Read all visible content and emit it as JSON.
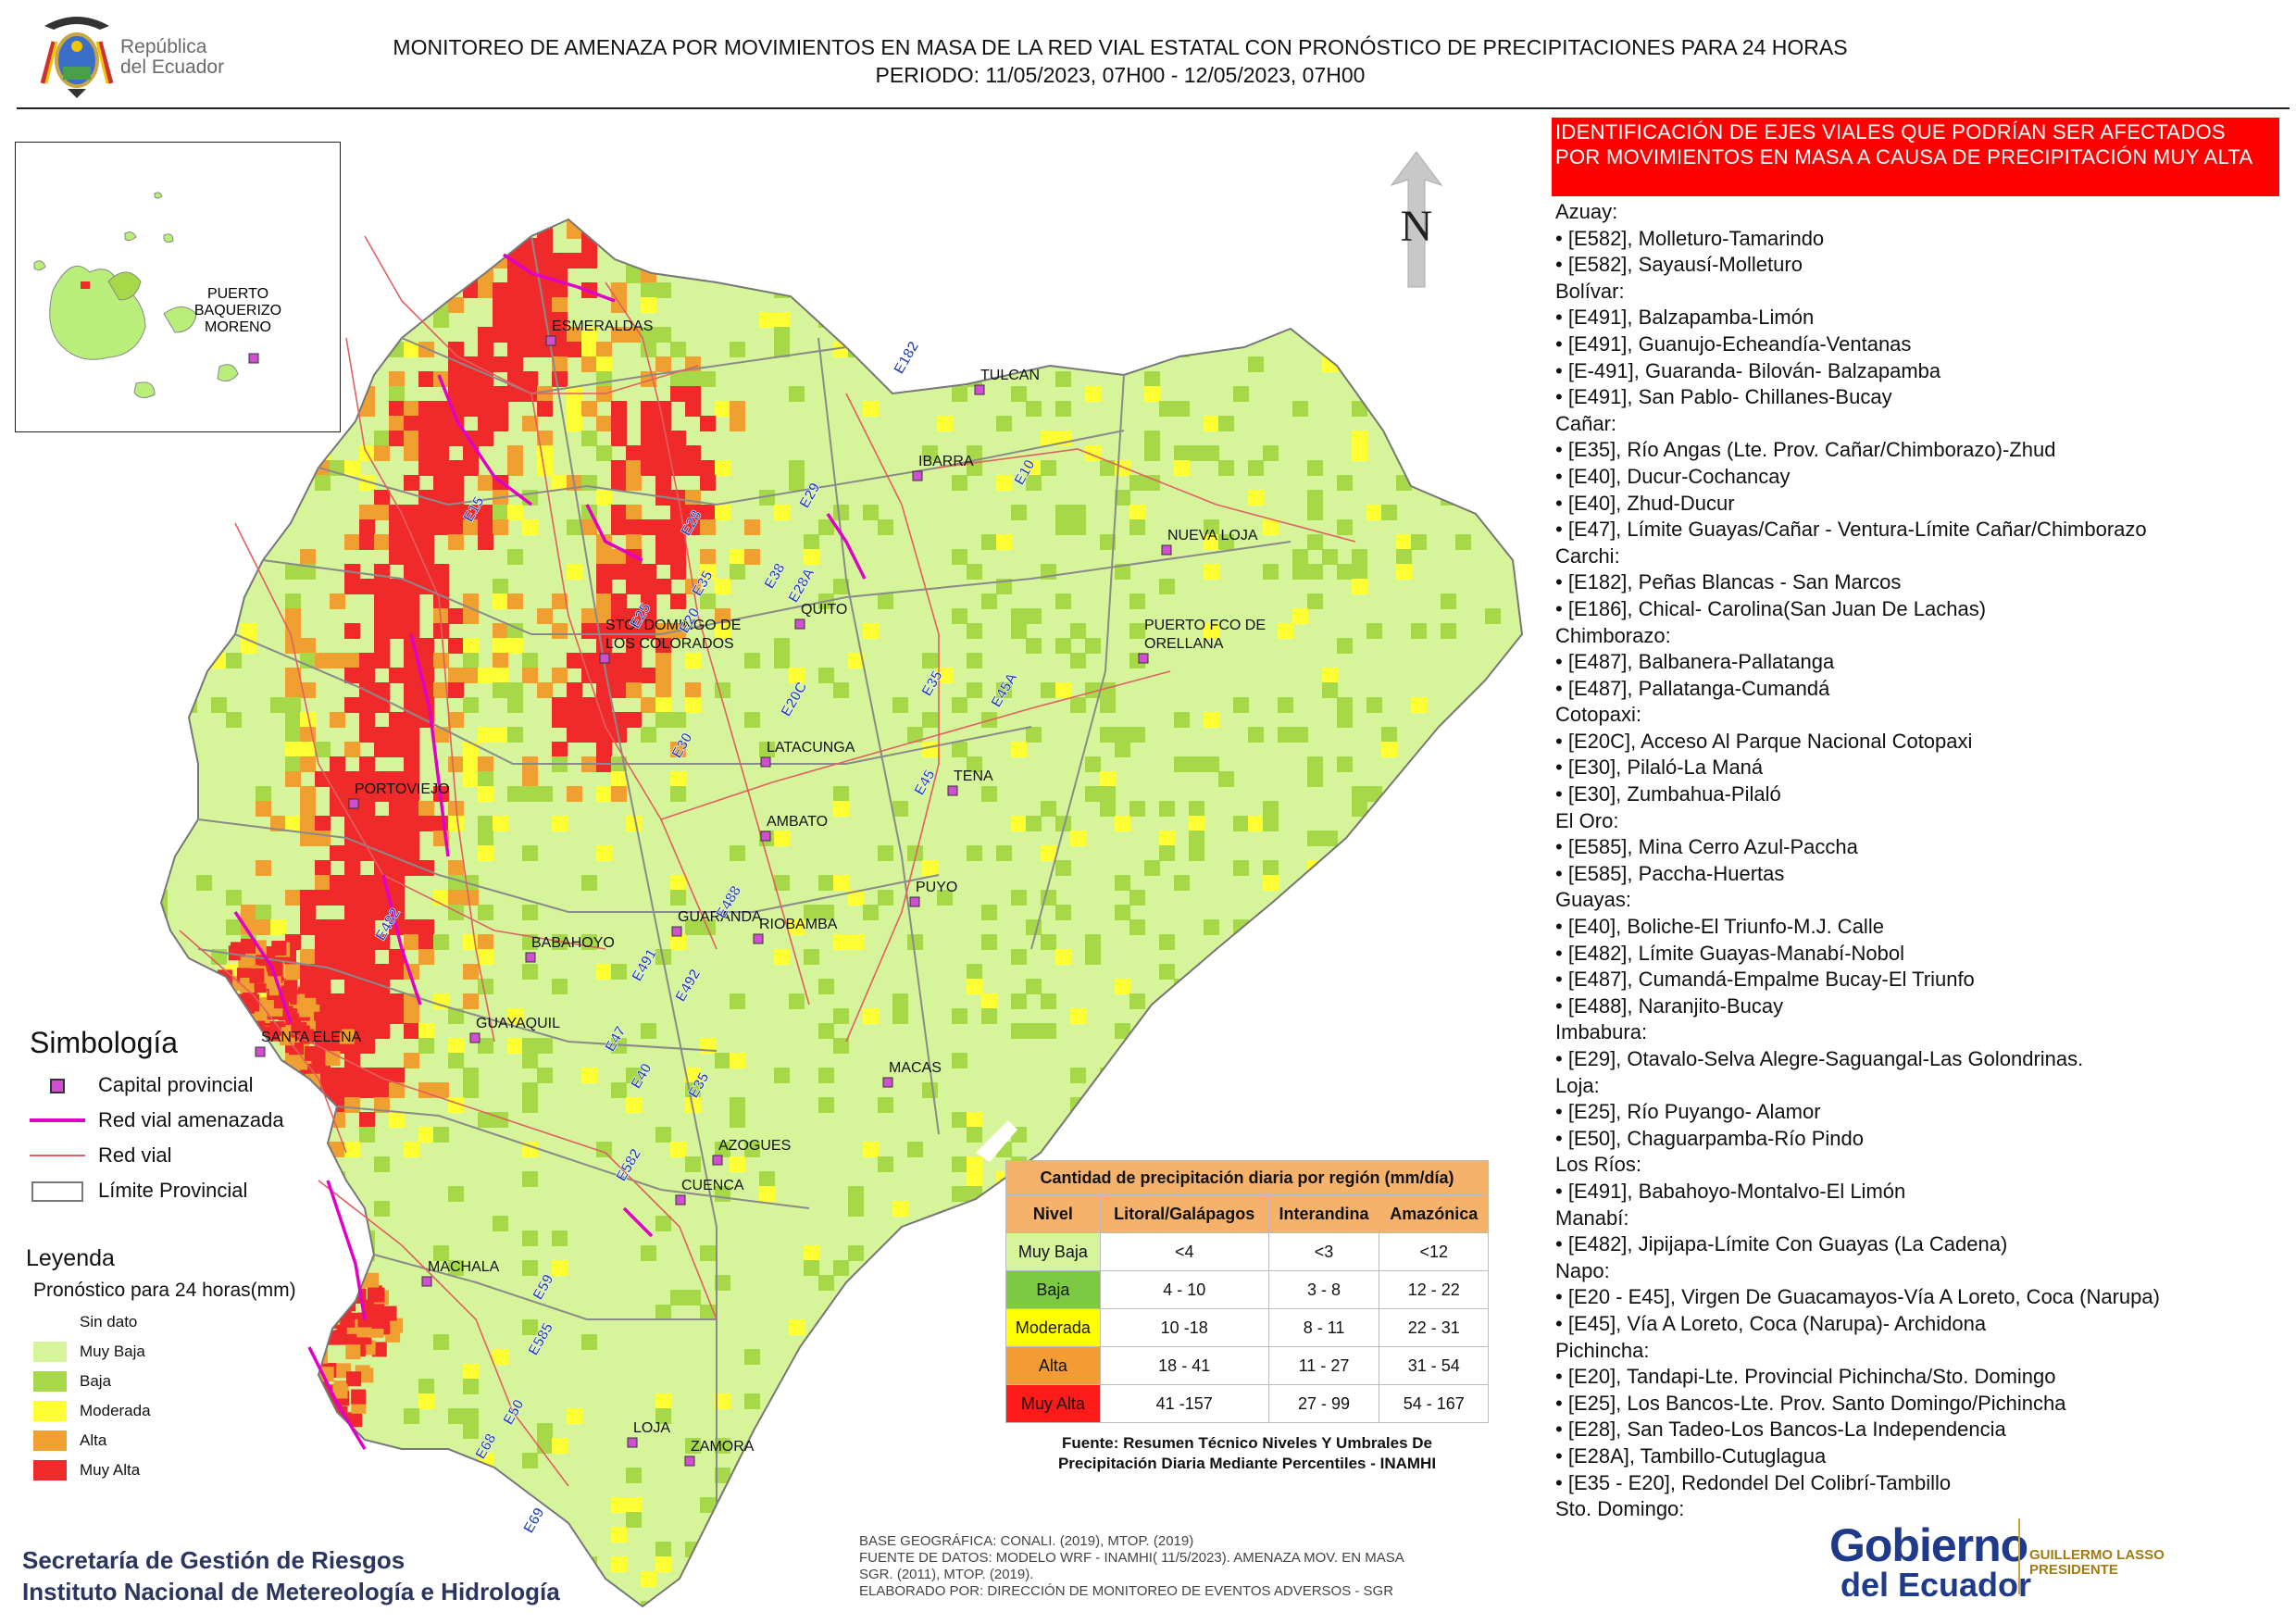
{
  "header": {
    "republica_line1": "República",
    "republica_line2": "del Ecuador",
    "title_line1": "MONITOREO DE AMENAZA POR MOVIMIENTOS EN MASA DE LA RED VIAL  ESTATAL  CON PRONÓSTICO  DE  PRECIPITACIONES PARA 24 HORAS",
    "title_line2": "PERIODO: 11/05/2023, 07H00 - 12/05/2023, 07H00"
  },
  "map": {
    "north_label": "N",
    "inset_city": [
      "PUERTO",
      "BAQUERIZO",
      "MORENO"
    ],
    "cities": [
      {
        "name": "ESMERALDAS"
      },
      {
        "name": "TULCAN"
      },
      {
        "name": "IBARRA"
      },
      {
        "name": "NUEVA LOJA"
      },
      {
        "name": "QUITO"
      },
      {
        "name": "STO. DOMINGO DE"
      },
      {
        "name": "LOS COLORADOS"
      },
      {
        "name": "PUERTO FCO DE"
      },
      {
        "name": "ORELLANA"
      },
      {
        "name": "LATACUNGA"
      },
      {
        "name": "TENA"
      },
      {
        "name": "PORTOVIEJO"
      },
      {
        "name": "AMBATO"
      },
      {
        "name": "PUYO"
      },
      {
        "name": "GUARANDA"
      },
      {
        "name": "RIOBAMBA"
      },
      {
        "name": "BABAHOYO"
      },
      {
        "name": "SANTA ELENA"
      },
      {
        "name": "GUAYAQUIL"
      },
      {
        "name": "MACAS"
      },
      {
        "name": "AZOGUES"
      },
      {
        "name": "CUENCA"
      },
      {
        "name": "MACHALA"
      },
      {
        "name": "LOJA"
      },
      {
        "name": "ZAMORA"
      }
    ],
    "roads": [
      "E182",
      "E10",
      "E15",
      "E28",
      "E29",
      "E35",
      "E20",
      "E25",
      "E30",
      "E20C",
      "E45",
      "E45A",
      "E40",
      "E47",
      "E488",
      "E491",
      "E492",
      "E482",
      "E35",
      "E582",
      "E59",
      "E585",
      "E50",
      "E68",
      "E69",
      "E38",
      "E28A",
      "E35"
    ],
    "colors": {
      "sin_dato": "#ffffff",
      "muy_baja": "#d6f59a",
      "baja": "#a6d84a",
      "moderada": "#ffff33",
      "alta": "#f0a030",
      "muy_alta": "#f02a2a",
      "road_threat": "#e000c8",
      "road": "#e06060",
      "boundary": "#8a8a8a"
    }
  },
  "panel": {
    "heading": "IDENTIFICACIÓN DE EJES VIALES QUE PODRÍAN SER AFECTADOS POR MOVIMIENTOS EN MASA A CAUSA DE PRECIPITACIÓN MUY ALTA",
    "provinces": [
      {
        "name": "Azuay:",
        "roads": [
          "• [E582], Molleturo-Tamarindo",
          "• [E582], Sayausí-Molleturo"
        ]
      },
      {
        "name": "Bolívar:",
        "roads": [
          "• [E491], Balzapamba-Limón",
          "• [E491], Guanujo-Echeandía-Ventanas",
          "• [E-491], Guaranda- Bilován- Balzapamba",
          "• [E491], San Pablo- Chillanes-Bucay"
        ]
      },
      {
        "name": "Cañar:",
        "roads": [
          "• [E35], Río Angas (Lte. Prov. Cañar/Chimborazo)-Zhud",
          "• [E40], Ducur-Cochancay",
          "• [E40], Zhud-Ducur",
          "• [E47], Límite Guayas/Cañar - Ventura-Límite Cañar/Chimborazo"
        ]
      },
      {
        "name": "Carchi:",
        "roads": [
          "• [E182], Peñas Blancas - San Marcos",
          "• [E186], Chical- Carolina(San Juan De Lachas)"
        ]
      },
      {
        "name": "Chimborazo:",
        "roads": [
          "• [E487], Balbanera-Pallatanga",
          "• [E487], Pallatanga-Cumandá"
        ]
      },
      {
        "name": "Cotopaxi:",
        "roads": [
          "• [E20C], Acceso Al Parque Nacional Cotopaxi",
          "• [E30], Pilaló-La Maná",
          "• [E30], Zumbahua-Pilaló"
        ]
      },
      {
        "name": "El Oro:",
        "roads": [
          "• [E585], Mina Cerro Azul-Paccha",
          "• [E585], Paccha-Huertas"
        ]
      },
      {
        "name": "Guayas:",
        "roads": [
          "• [E40], Boliche-El Triunfo-M.J. Calle",
          "• [E482], Límite Guayas-Manabí-Nobol",
          "• [E487], Cumandá-Empalme Bucay-El Triunfo",
          "• [E488], Naranjito-Bucay"
        ]
      },
      {
        "name": "Imbabura:",
        "roads": [
          "• [E29], Otavalo-Selva Alegre-Saguangal-Las Golondrinas."
        ]
      },
      {
        "name": "Loja:",
        "roads": [
          "• [E25], Río Puyango- Alamor",
          "• [E50], Chaguarpamba-Río Pindo"
        ]
      },
      {
        "name": "Los Ríos:",
        "roads": [
          "• [E491], Babahoyo-Montalvo-El Limón"
        ]
      },
      {
        "name": "Manabí:",
        "roads": [
          "• [E482], Jipijapa-Límite Con Guayas (La Cadena)"
        ]
      },
      {
        "name": "Napo:",
        "roads": [
          "• [E20 - E45], Virgen De Guacamayos-Vía A Loreto, Coca (Narupa)",
          "• [E45], Vía A Loreto, Coca (Narupa)- Archidona"
        ]
      },
      {
        "name": "Pichincha:",
        "roads": [
          "• [E20], Tandapi-Lte. Provincial Pichincha/Sto. Domingo",
          "• [E25], Los Bancos-Lte. Prov. Santo Domingo/Pichincha",
          "• [E28], San Tadeo-Los Bancos-La Independencia",
          "• [E28A], Tambillo-Cutuglagua",
          "• [E35 - E20], Redondel Del Colibrí-Tambillo"
        ]
      },
      {
        "name": "Sto. Domingo:",
        "roads": []
      }
    ]
  },
  "symbology": {
    "title": "Simbología",
    "items": [
      "Capital provincial",
      "Red vial amenazada",
      "Red vial",
      "Límite Provincial"
    ]
  },
  "legend": {
    "title": "Leyenda",
    "subtitle": "Pronóstico para 24 horas(mm)",
    "items": [
      "Sin dato",
      " Muy Baja",
      "Baja",
      "Moderada",
      "Alta",
      "Muy Alta"
    ]
  },
  "precip_table": {
    "caption": "Cantidad de precipitación diaria por región (mm/día)",
    "headers": [
      "Nivel",
      "Litoral/Galápagos",
      "Interandina",
      "Amazónica"
    ],
    "rows": [
      {
        "nivel": "Muy Baja",
        "lit": "<4",
        "int": "<3",
        "ama": "<12",
        "color": "#d6f59a"
      },
      {
        "nivel": "Baja",
        "lit": "4 - 10",
        "int": "3 - 8",
        "ama": "12 - 22",
        "color": "#7cc944"
      },
      {
        "nivel": "Moderada",
        "lit": "10 -18",
        "int": "8 - 11",
        "ama": "22 - 31",
        "color": "#ffff00"
      },
      {
        "nivel": "Alta",
        "lit": "18 - 41",
        "int": "11 - 27",
        "ama": "31 - 54",
        "color": "#f39c33"
      },
      {
        "nivel": "Muy Alta",
        "lit": "41 -157",
        "int": "27 - 99",
        "ama": "54 - 167",
        "color": "#ff1a1a"
      }
    ],
    "source_line1": "Fuente: Resumen Técnico Niveles Y Umbrales De",
    "source_line2": "Precipitación Diaria Mediante Percentiles - INAMHI"
  },
  "footer": {
    "inst_line1": "Secretaría de Gestión de Riesgos",
    "inst_line2": "Instituto Nacional de Metereología e Hidrología",
    "credits": [
      "BASE GEOGRÁFICA: CONALI. (2019), MTOP. (2019)",
      "FUENTE DE DATOS: MODELO WRF - INAMHI( 11/5/2023).  AMENAZA MOV. EN MASA",
      "SGR. (2011), MTOP. (2019).",
      "ELABORADO POR: DIRECCIÓN DE MONITOREO DE EVENTOS ADVERSOS - SGR"
    ],
    "gobierno_1": "Gobierno",
    "gobierno_2": "del Ecuador",
    "president_1": "GUILLERMO LASSO",
    "president_2": "PRESIDENTE"
  }
}
